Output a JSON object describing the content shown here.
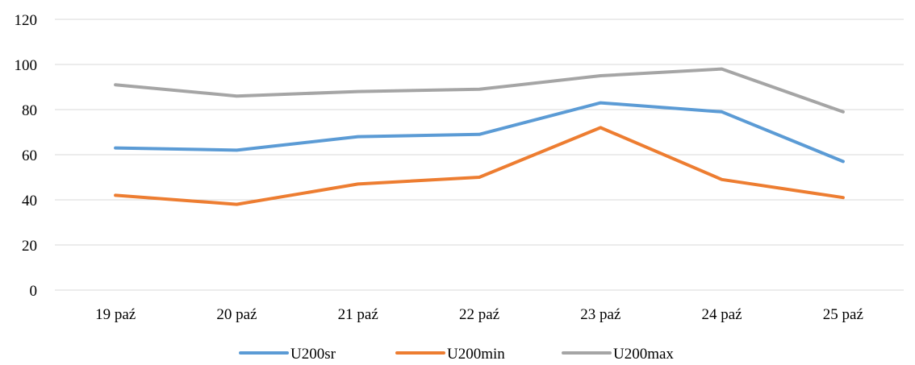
{
  "chart_data": {
    "type": "line",
    "categories": [
      "19 paź",
      "20 paź",
      "21 paź",
      "22 paź",
      "23 paź",
      "24 paź",
      "25 paź"
    ],
    "series": [
      {
        "name": "U200sr",
        "color": "#5b9bd5",
        "values": [
          63,
          62,
          68,
          69,
          83,
          79,
          57
        ]
      },
      {
        "name": "U200min",
        "color": "#ed7d31",
        "values": [
          42,
          38,
          47,
          50,
          72,
          49,
          41
        ]
      },
      {
        "name": "U200max",
        "color": "#a5a5a5",
        "values": [
          91,
          86,
          88,
          89,
          95,
          98,
          79
        ]
      }
    ],
    "ylim": [
      0,
      120
    ],
    "yticks": [
      0,
      20,
      40,
      60,
      80,
      100,
      120
    ],
    "grid": true,
    "legend_position": "bottom-center"
  }
}
